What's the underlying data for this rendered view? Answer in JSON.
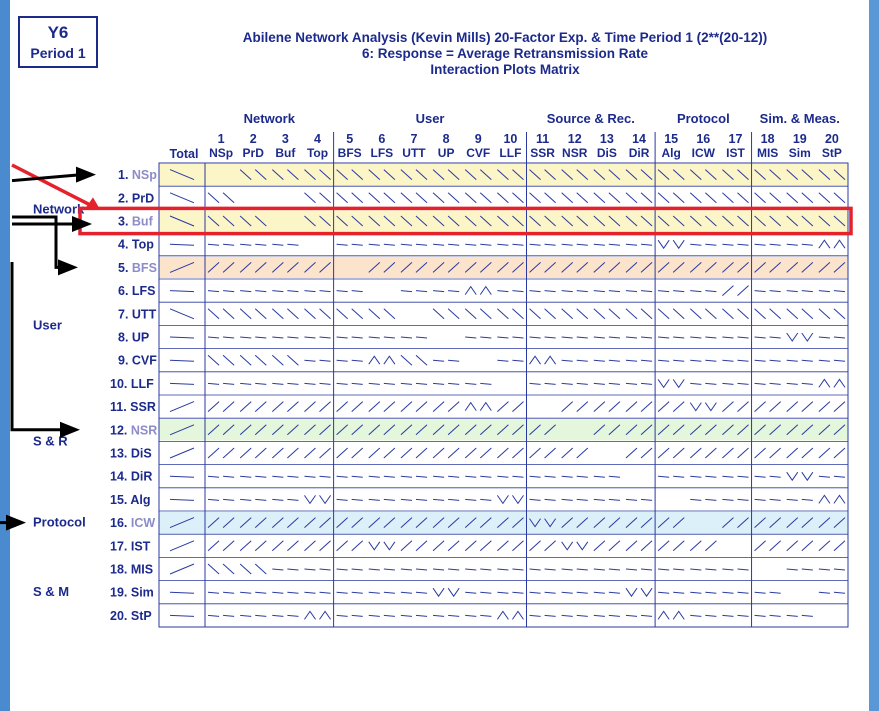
{
  "badge": {
    "line1": "Y6",
    "line2": "Period 1"
  },
  "title": {
    "line1": "Abilene Network Analysis (Kevin Mills) 20-Factor Exp. & Time Period 1 (2**(20-12))",
    "line2": "6:  Response  =  Average Retransmission Rate",
    "line3": "Interaction Plots Matrix"
  },
  "colors": {
    "ink": "#1c2a8c",
    "grid": "#2a3aa0",
    "slide_bg": "#5a97d6",
    "highlight_yellow": "#fbf5c8",
    "highlight_orange": "#fbe3cc",
    "highlight_green": "#e4f6dc",
    "highlight_blue": "#dcf0fa",
    "highlight_label": "#8c8cc8",
    "annotation_red": "#e5212b",
    "arrow": "#000000"
  },
  "groups": [
    {
      "label": "Network",
      "first": 1,
      "last": 4
    },
    {
      "label": "User",
      "first": 5,
      "last": 10
    },
    {
      "label": "Source & Rec.",
      "first": 11,
      "last": 14
    },
    {
      "label": "Protocol",
      "first": 15,
      "last": 17
    },
    {
      "label": "Sim. & Meas.",
      "first": 18,
      "last": 20
    }
  ],
  "total_label": "Total",
  "factors": [
    "NSp",
    "PrD",
    "Buf",
    "Top",
    "BFS",
    "LFS",
    "UTT",
    "UP",
    "CVF",
    "LLF",
    "SSR",
    "NSR",
    "DiS",
    "DiR",
    "Alg",
    "ICW",
    "IST",
    "MIS",
    "Sim",
    "StP"
  ],
  "row_groups": [
    {
      "label": "Network",
      "rows": [
        1,
        4
      ]
    },
    {
      "label": "User",
      "rows": [
        5,
        10
      ]
    },
    {
      "label": "S & R",
      "rows": [
        11,
        14
      ]
    },
    {
      "label": "Protocol",
      "rows": [
        15,
        17
      ]
    },
    {
      "label": "S & M",
      "rows": [
        18,
        20
      ]
    }
  ],
  "highlighted_rows": [
    {
      "row": 1,
      "color": "highlight_yellow"
    },
    {
      "row": 3,
      "color": "highlight_yellow"
    },
    {
      "row": 5,
      "color": "highlight_orange"
    },
    {
      "row": 12,
      "color": "highlight_green"
    },
    {
      "row": 16,
      "color": "highlight_blue"
    }
  ],
  "boxed_row": 3,
  "chart_data": {
    "type": "interaction-plot-matrix",
    "response": "Average Retransmission Rate",
    "note": "Each cell holds a two-line interaction plot (factor level low/high). Values are glyph codes: d = falling line, u = rising line, f = flat line, v = trough, n = peak, blank = no plot.",
    "total_column": [
      "d",
      "d",
      "d",
      "f",
      "u",
      "f",
      "d",
      "f",
      "f",
      "f",
      "u",
      "u",
      "u",
      "f",
      "f",
      "u",
      "u",
      "u",
      "f",
      "f"
    ],
    "cells": [
      [
        "",
        "dd",
        "dd",
        "dd",
        "dd",
        "dd",
        "dd",
        "dd",
        "dd",
        "dd",
        "dd",
        "dd",
        "dd",
        "dd",
        "dd",
        "dd",
        "dd",
        "dd",
        "dd",
        "dd"
      ],
      [
        "dd",
        "",
        "",
        "dd",
        "dd",
        "dd",
        "dd",
        "dd",
        "dd",
        "dd",
        "dd",
        "dd",
        "dd",
        "dd",
        "dd",
        "dd",
        "dd",
        "dd",
        "dd",
        "dd"
      ],
      [
        "dd",
        "dd",
        "",
        "dd",
        "dd",
        "dd",
        "dd",
        "dd",
        "dd",
        "dd",
        "dd",
        "dd",
        "dd",
        "dd",
        "dd",
        "dd",
        "dd",
        "dd",
        "dd",
        "dd"
      ],
      [
        "ff",
        "ff",
        "ff",
        "",
        "ff",
        "ff",
        "ff",
        "ff",
        "ff",
        "ff",
        "ff",
        "ff",
        "ff",
        "ff",
        "vv",
        "ff",
        "ff",
        "ff",
        "ff",
        "nn"
      ],
      [
        "uu",
        "uu",
        "uu",
        "uu",
        "",
        "uu",
        "uu",
        "uu",
        "uu",
        "uu",
        "uu",
        "uu",
        "uu",
        "uu",
        "uu",
        "uu",
        "uu",
        "uu",
        "uu",
        "uu"
      ],
      [
        "ff",
        "ff",
        "ff",
        "ff",
        "ff",
        "",
        "ff",
        "ff",
        "nn",
        "ff",
        "ff",
        "ff",
        "ff",
        "ff",
        "ff",
        "ff",
        "uu",
        "ff",
        "ff",
        "ff"
      ],
      [
        "dd",
        "dd",
        "dd",
        "dd",
        "dd",
        "dd",
        "",
        "dd",
        "dd",
        "dd",
        "dd",
        "dd",
        "dd",
        "dd",
        "dd",
        "dd",
        "dd",
        "dd",
        "dd",
        "dd"
      ],
      [
        "ff",
        "ff",
        "ff",
        "ff",
        "ff",
        "ff",
        "ff",
        "",
        "ff",
        "ff",
        "ff",
        "ff",
        "ff",
        "ff",
        "ff",
        "ff",
        "ff",
        "ff",
        "vv",
        "ff"
      ],
      [
        "dd",
        "dd",
        "dd",
        "ff",
        "ff",
        "nn",
        "dd",
        "ff",
        "",
        "ff",
        "nn",
        "ff",
        "ff",
        "ff",
        "ff",
        "ff",
        "ff",
        "ff",
        "ff",
        "ff"
      ],
      [
        "ff",
        "ff",
        "ff",
        "ff",
        "ff",
        "ff",
        "ff",
        "ff",
        "ff",
        "",
        "ff",
        "ff",
        "ff",
        "ff",
        "vv",
        "ff",
        "ff",
        "ff",
        "ff",
        "nn"
      ],
      [
        "uu",
        "uu",
        "uu",
        "uu",
        "uu",
        "uu",
        "uu",
        "uu",
        "nn",
        "uu",
        "",
        "uu",
        "uu",
        "uu",
        "uu",
        "vv",
        "uu",
        "uu",
        "uu",
        "uu"
      ],
      [
        "uu",
        "uu",
        "uu",
        "uu",
        "uu",
        "uu",
        "uu",
        "uu",
        "uu",
        "uu",
        "uu",
        "",
        "uu",
        "uu",
        "uu",
        "uu",
        "uu",
        "uu",
        "uu",
        "uu"
      ],
      [
        "uu",
        "uu",
        "uu",
        "uu",
        "uu",
        "uu",
        "uu",
        "uu",
        "uu",
        "uu",
        "uu",
        "uu",
        "",
        "uu",
        "uu",
        "uu",
        "uu",
        "uu",
        "uu",
        "uu"
      ],
      [
        "ff",
        "ff",
        "ff",
        "ff",
        "ff",
        "ff",
        "ff",
        "ff",
        "ff",
        "ff",
        "ff",
        "ff",
        "ff",
        "",
        "ff",
        "ff",
        "ff",
        "ff",
        "vv",
        "ff"
      ],
      [
        "ff",
        "ff",
        "ff",
        "vv",
        "ff",
        "ff",
        "ff",
        "ff",
        "ff",
        "vv",
        "ff",
        "ff",
        "ff",
        "ff",
        "",
        "ff",
        "ff",
        "ff",
        "ff",
        "nn"
      ],
      [
        "uu",
        "uu",
        "uu",
        "uu",
        "uu",
        "uu",
        "uu",
        "uu",
        "uu",
        "uu",
        "vv",
        "uu",
        "uu",
        "uu",
        "uu",
        "",
        "uu",
        "uu",
        "uu",
        "uu"
      ],
      [
        "uu",
        "uu",
        "uu",
        "uu",
        "uu",
        "vv",
        "uu",
        "uu",
        "uu",
        "uu",
        "uu",
        "vv",
        "uu",
        "uu",
        "uu",
        "uu",
        "",
        "uu",
        "uu",
        "uu"
      ],
      [
        "dd",
        "dd",
        "ff",
        "ff",
        "ff",
        "ff",
        "ff",
        "ff",
        "ff",
        "ff",
        "ff",
        "ff",
        "ff",
        "ff",
        "ff",
        "ff",
        "ff",
        "",
        "ff",
        "ff"
      ],
      [
        "ff",
        "ff",
        "ff",
        "ff",
        "ff",
        "ff",
        "ff",
        "vv",
        "ff",
        "ff",
        "ff",
        "ff",
        "ff",
        "vv",
        "ff",
        "ff",
        "ff",
        "ff",
        "",
        "ff"
      ],
      [
        "ff",
        "ff",
        "ff",
        "nn",
        "ff",
        "ff",
        "ff",
        "ff",
        "ff",
        "nn",
        "ff",
        "ff",
        "ff",
        "ff",
        "nn",
        "ff",
        "ff",
        "ff",
        "ff",
        ""
      ]
    ]
  }
}
